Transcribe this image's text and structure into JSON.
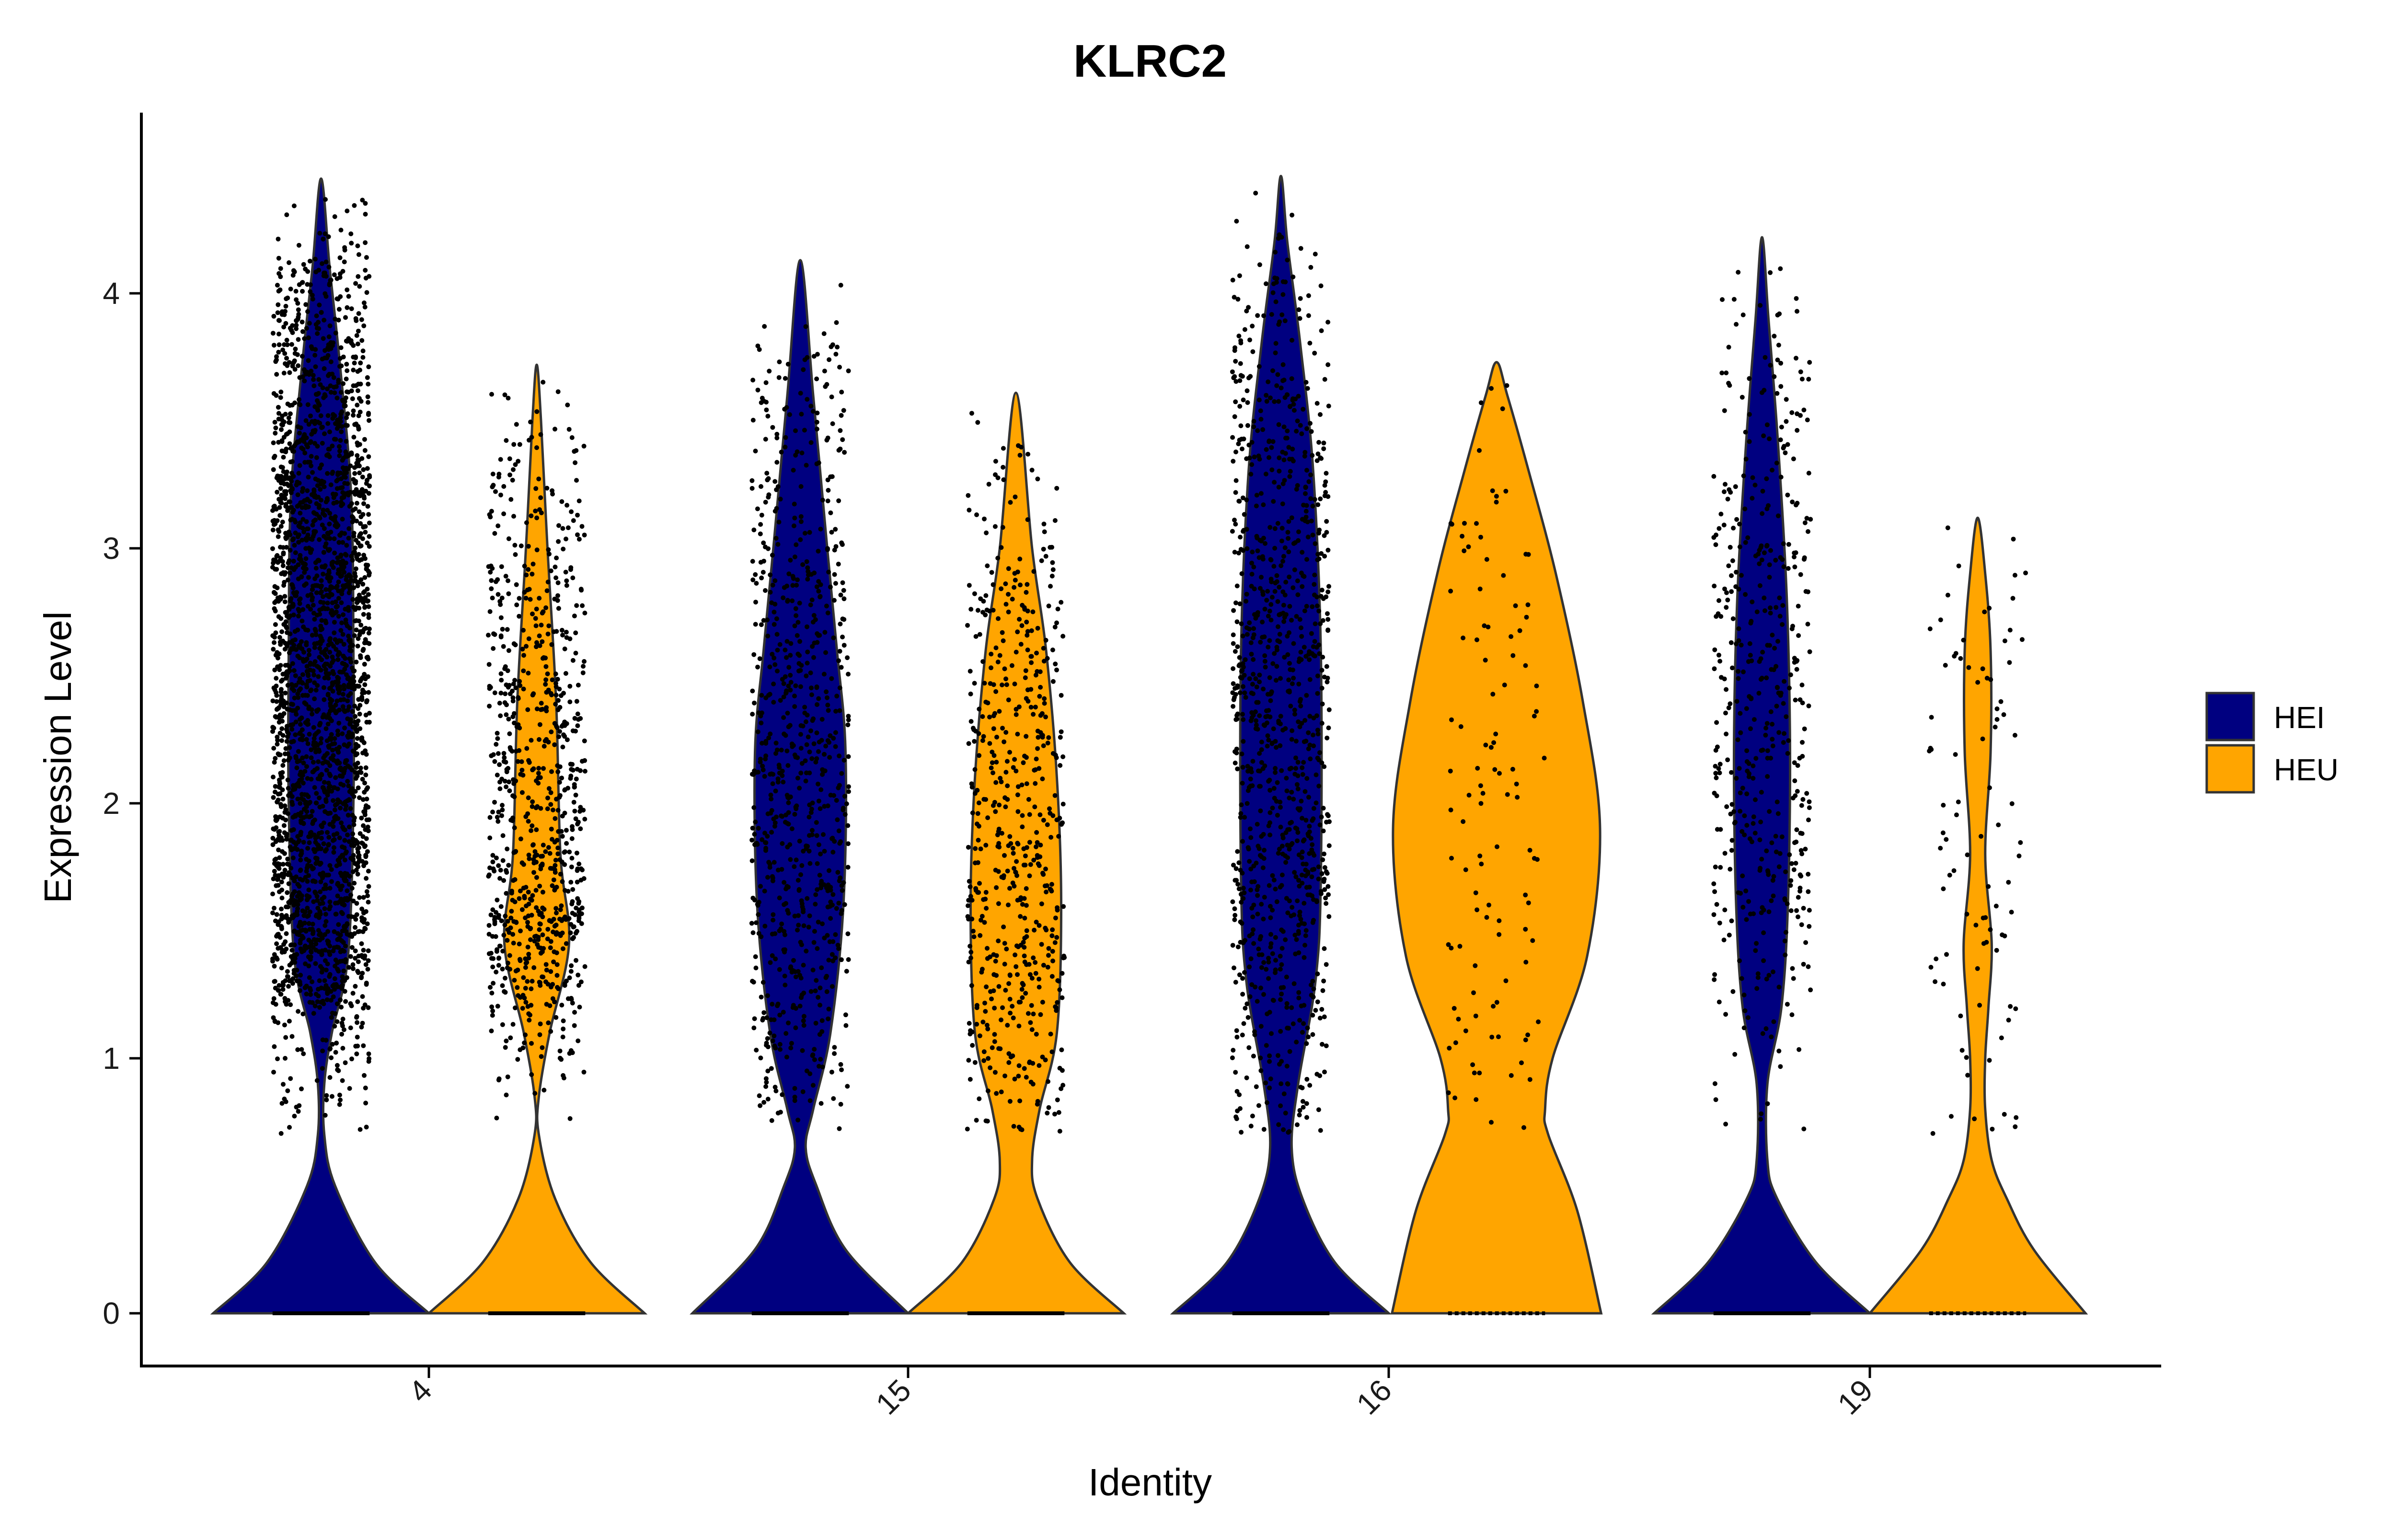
{
  "chart_data": {
    "type": "violin",
    "title": "KLRC2",
    "xlabel": "Identity",
    "ylabel": "Expression Level",
    "ylim": [
      0,
      4.5
    ],
    "yticks": [
      0,
      1,
      2,
      3,
      4
    ],
    "categories": [
      "4",
      "15",
      "16",
      "19"
    ],
    "legend": {
      "position": "right",
      "items": [
        {
          "name": "HEI",
          "color": "#000080"
        },
        {
          "name": "HEU",
          "color": "#FFA500"
        }
      ]
    },
    "series": [
      {
        "name": "HEI",
        "color": "#000080",
        "max": [
          4.45,
          4.13,
          4.46,
          4.22
        ],
        "points_shown": true
      },
      {
        "name": "HEU",
        "color": "#FFA500",
        "max": [
          3.72,
          3.61,
          3.73,
          3.12
        ],
        "points_shown": true
      }
    ],
    "grid": false
  }
}
